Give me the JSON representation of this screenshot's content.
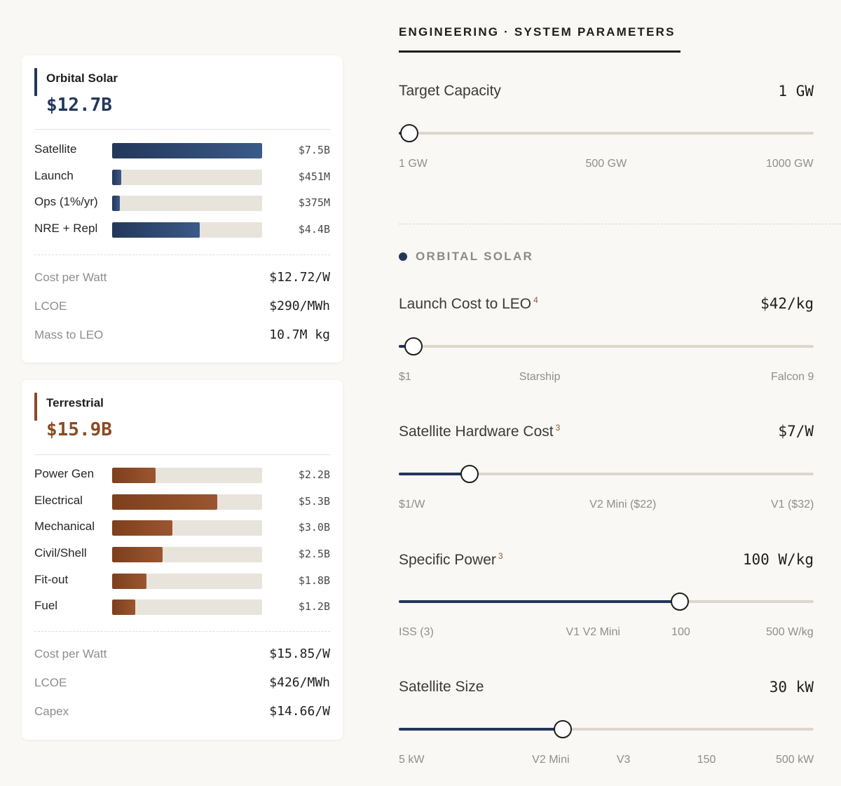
{
  "orbital": {
    "title": "Orbital Solar",
    "total": "$12.7B",
    "accent_color": "#23375a",
    "breakdown": [
      {
        "label": "Satellite",
        "value": "$7.5B",
        "fraction": 1.0
      },
      {
        "label": "Launch",
        "value": "$451M",
        "fraction": 0.06
      },
      {
        "label": "Ops (1%/yr)",
        "value": "$375M",
        "fraction": 0.05
      },
      {
        "label": "NRE + Repl",
        "value": "$4.4B",
        "fraction": 0.585
      }
    ],
    "metrics": [
      {
        "label": "Cost per Watt",
        "value": "$12.72/W"
      },
      {
        "label": "LCOE",
        "value": "$290/MWh"
      },
      {
        "label": "Mass to LEO",
        "value": "10.7M kg"
      }
    ]
  },
  "terrestrial": {
    "title": "Terrestrial",
    "total": "$15.9B",
    "accent_color": "#8a4a24",
    "breakdown": [
      {
        "label": "Power Gen",
        "value": "$2.2B",
        "fraction": 0.29
      },
      {
        "label": "Electrical",
        "value": "$5.3B",
        "fraction": 0.7
      },
      {
        "label": "Mechanical",
        "value": "$3.0B",
        "fraction": 0.4
      },
      {
        "label": "Civil/Shell",
        "value": "$2.5B",
        "fraction": 0.335
      },
      {
        "label": "Fit-out",
        "value": "$1.8B",
        "fraction": 0.23
      },
      {
        "label": "Fuel",
        "value": "$1.2B",
        "fraction": 0.155
      }
    ],
    "metrics": [
      {
        "label": "Cost per Watt",
        "value": "$15.85/W"
      },
      {
        "label": "LCOE",
        "value": "$426/MWh"
      },
      {
        "label": "Capex",
        "value": "$14.66/W"
      }
    ]
  },
  "panel": {
    "title": "ENGINEERING · SYSTEM PARAMETERS",
    "section_label": "ORBITAL SOLAR",
    "section_color": "#23375a"
  },
  "params": {
    "target_capacity": {
      "label": "Target Capacity",
      "value": "1 GW",
      "fraction": 0.025,
      "ticks": [
        {
          "text": "1 GW",
          "pos": 0.0
        },
        {
          "text": "500 GW",
          "pos": 0.5
        },
        {
          "text": "1000 GW",
          "pos": 1.0
        }
      ]
    },
    "launch_cost": {
      "label": "Launch Cost to LEO",
      "sup": "4",
      "value": "$42/kg",
      "fraction": 0.035,
      "ticks": [
        {
          "text": "$1",
          "pos": 0.0
        },
        {
          "text": "Starship",
          "pos": 0.34
        },
        {
          "text": "Falcon 9",
          "pos": 1.0
        }
      ]
    },
    "hardware_cost": {
      "label": "Satellite Hardware Cost",
      "sup": "3",
      "value": "$7/W",
      "fraction": 0.17,
      "ticks": [
        {
          "text": "$1/W",
          "pos": 0.0
        },
        {
          "text": "V2 Mini ($22)",
          "pos": 0.54
        },
        {
          "text": "V1 ($32)",
          "pos": 1.0
        }
      ]
    },
    "specific_power": {
      "label": "Specific Power",
      "sup": "3",
      "value": "100 W/kg",
      "fraction": 0.677,
      "ticks": [
        {
          "text": "ISS (3)",
          "pos": 0.0
        },
        {
          "text": "V1 V2 Mini",
          "pos": 0.468
        },
        {
          "text": "100",
          "pos": 0.68
        },
        {
          "text": "500 W/kg",
          "pos": 1.0
        }
      ]
    },
    "satellite_size": {
      "label": "Satellite Size",
      "value": "30 kW",
      "fraction": 0.395,
      "ticks": [
        {
          "text": "5 kW",
          "pos": 0.0
        },
        {
          "text": "V2 Mini",
          "pos": 0.366
        },
        {
          "text": "V3",
          "pos": 0.542
        },
        {
          "text": "150",
          "pos": 0.742
        },
        {
          "text": "500 kW",
          "pos": 1.0
        }
      ]
    }
  }
}
